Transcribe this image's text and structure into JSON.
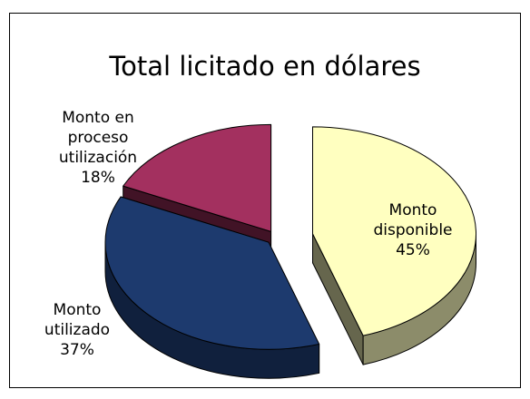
{
  "chart_data": {
    "type": "pie3d",
    "title": "Total licitado en dólares",
    "categories": [
      "Monto disponible",
      "Monto utilizado",
      "Monto en proceso utilización"
    ],
    "values": [
      45,
      37,
      18
    ],
    "value_labels": [
      "45%",
      "37%",
      "18%"
    ],
    "colors": [
      "#ffffc0",
      "#1d3a6e",
      "#a3305f"
    ]
  }
}
